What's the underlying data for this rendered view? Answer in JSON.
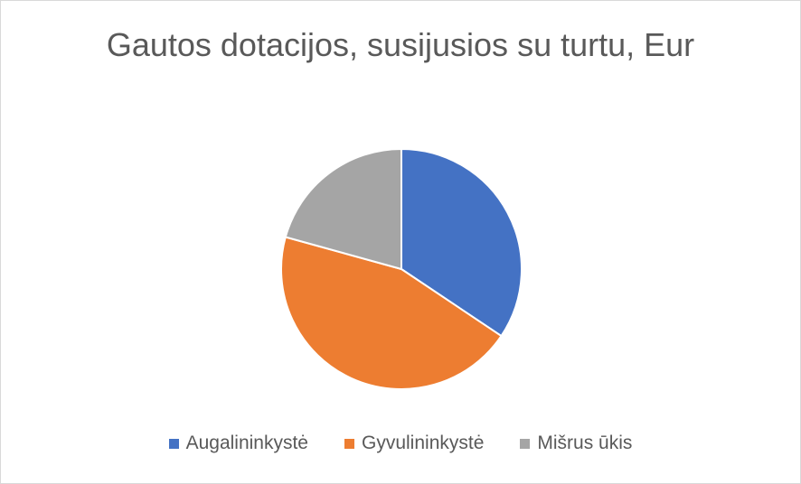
{
  "chart_data": {
    "type": "pie",
    "title": "Gautos dotacijos, susijusios su turtu, Eur",
    "categories": [
      "Augalininkystė",
      "Gyvulininkystė",
      "Mišrus ūkis"
    ],
    "values": [
      34.4,
      44.9,
      20.7
    ],
    "colors": [
      "#4472c4",
      "#ed7d31",
      "#a5a5a5"
    ],
    "legend": "bottom"
  }
}
